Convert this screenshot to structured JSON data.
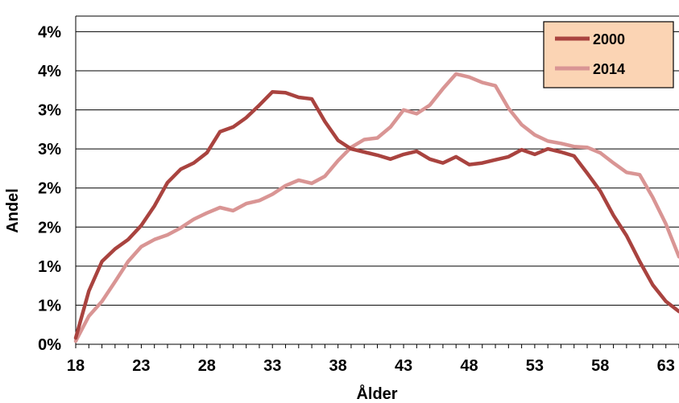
{
  "chart_data": {
    "type": "line",
    "xlabel": "Ålder",
    "ylabel": "Andel",
    "xlim": [
      18,
      64
    ],
    "ylim": [
      0,
      4.2
    ],
    "grid": true,
    "legend_position": "top-right",
    "x_tick_values": [
      18,
      23,
      28,
      33,
      38,
      43,
      48,
      53,
      58,
      63
    ],
    "x_tick_labels": [
      "18",
      "23",
      "28",
      "33",
      "38",
      "43",
      "48",
      "53",
      "58",
      "63"
    ],
    "y_tick_values": [
      0,
      0.5,
      1.0,
      1.5,
      2.0,
      2.5,
      3.0,
      3.5,
      4.0
    ],
    "y_tick_labels": [
      "0%",
      "1%",
      "1%",
      "2%",
      "2%",
      "3%",
      "3%",
      "4%",
      "4%"
    ],
    "x": [
      18,
      19,
      20,
      21,
      22,
      23,
      24,
      25,
      26,
      27,
      28,
      29,
      30,
      31,
      32,
      33,
      34,
      35,
      36,
      37,
      38,
      39,
      40,
      41,
      42,
      43,
      44,
      45,
      46,
      47,
      48,
      49,
      50,
      51,
      52,
      53,
      54,
      55,
      56,
      57,
      58,
      59,
      60,
      61,
      62,
      63,
      64
    ],
    "series": [
      {
        "name": "2000",
        "color": "#a9433f",
        "values": [
          0.08,
          0.68,
          1.06,
          1.22,
          1.34,
          1.52,
          1.77,
          2.07,
          2.24,
          2.32,
          2.45,
          2.72,
          2.78,
          2.9,
          3.06,
          3.23,
          3.22,
          3.16,
          3.14,
          2.85,
          2.61,
          2.5,
          2.46,
          2.42,
          2.37,
          2.43,
          2.47,
          2.37,
          2.32,
          2.4,
          2.3,
          2.32,
          2.36,
          2.4,
          2.49,
          2.43,
          2.5,
          2.46,
          2.41,
          2.19,
          1.96,
          1.65,
          1.39,
          1.06,
          0.76,
          0.55,
          0.42
        ]
      },
      {
        "name": "2014",
        "color": "#d99594",
        "values": [
          0.04,
          0.36,
          0.55,
          0.8,
          1.06,
          1.25,
          1.34,
          1.4,
          1.49,
          1.6,
          1.68,
          1.75,
          1.71,
          1.8,
          1.84,
          1.92,
          2.03,
          2.1,
          2.06,
          2.15,
          2.35,
          2.52,
          2.62,
          2.64,
          2.78,
          3.0,
          2.95,
          3.06,
          3.27,
          3.46,
          3.42,
          3.35,
          3.31,
          3.02,
          2.81,
          2.68,
          2.6,
          2.57,
          2.53,
          2.52,
          2.45,
          2.32,
          2.2,
          2.17,
          1.88,
          1.54,
          1.12
        ]
      }
    ]
  }
}
